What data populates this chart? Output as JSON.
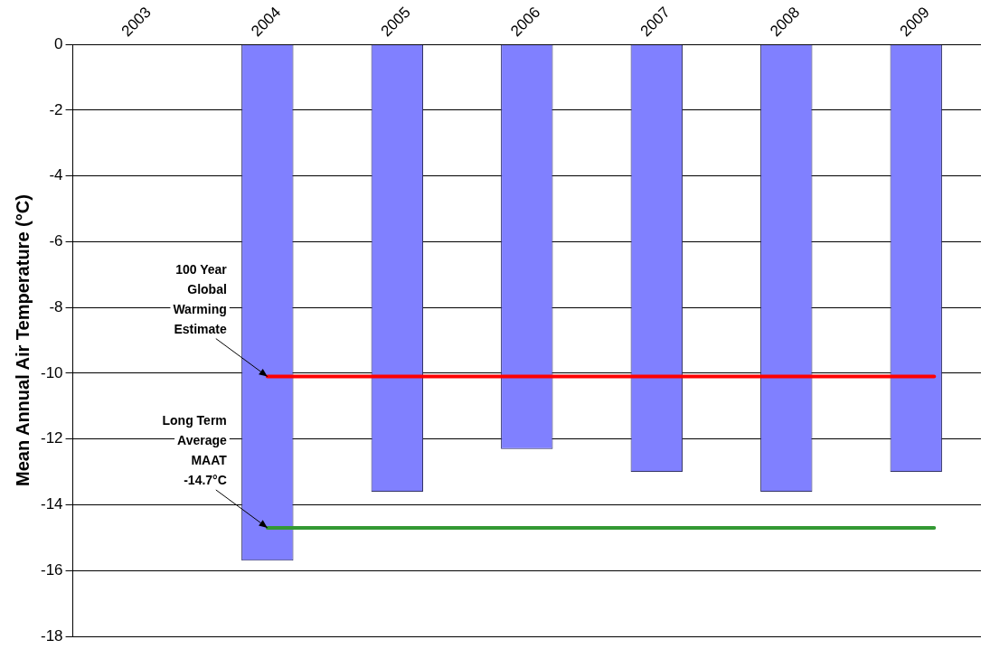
{
  "chart_data": {
    "type": "bar",
    "ylabel": "Mean Annual Air Temperature (°C)",
    "categories": [
      "2003",
      "2004",
      "2005",
      "2006",
      "2007",
      "2008",
      "2009"
    ],
    "values": [
      null,
      -15.7,
      -13.6,
      -12.3,
      -13.0,
      -13.6,
      -13.0
    ],
    "color": "#8080ff",
    "ylim": [
      -18,
      0
    ],
    "yticks": [
      -18,
      -16,
      -14,
      -12,
      -10,
      -8,
      -6,
      -4,
      -2,
      0
    ],
    "grid": "y",
    "ref_lines": [
      {
        "axis": "y",
        "value": -10.1,
        "label": "100 Year Global Warming Estimate",
        "color": "#ff0000"
      },
      {
        "axis": "y",
        "value": -14.7,
        "label": "Long Term Average MAAT -14.7°C",
        "color": "#339933"
      }
    ]
  }
}
